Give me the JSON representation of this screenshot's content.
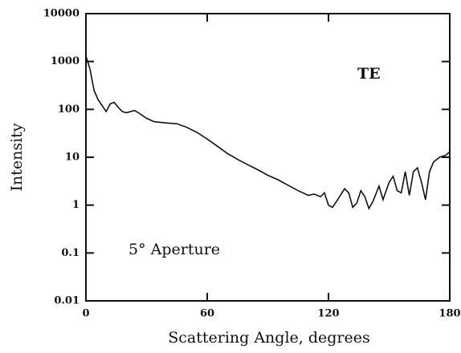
{
  "chart_data": {
    "type": "line",
    "xlabel": "Scattering Angle, degrees",
    "ylabel": "Intensity",
    "annotations": [
      "TE",
      "5° Aperture"
    ],
    "x": [
      0,
      2,
      4,
      6,
      8,
      10,
      12,
      14,
      16,
      18,
      20,
      24,
      26,
      30,
      34,
      40,
      45,
      50,
      55,
      60,
      65,
      70,
      75,
      80,
      85,
      90,
      95,
      100,
      105,
      110,
      113,
      116,
      118,
      120,
      122,
      124,
      128,
      130,
      132,
      134,
      136,
      138,
      140,
      142,
      145,
      147,
      150,
      152,
      154,
      156,
      158,
      160,
      162,
      164,
      166,
      168,
      170,
      172,
      175,
      178,
      180
    ],
    "values": [
      1300,
      700,
      250,
      160,
      120,
      90,
      130,
      140,
      110,
      90,
      85,
      95,
      85,
      65,
      55,
      52,
      50,
      42,
      33,
      24,
      17,
      12,
      9,
      7,
      5.5,
      4.2,
      3.4,
      2.6,
      2.0,
      1.6,
      1.7,
      1.5,
      1.8,
      1.0,
      0.9,
      1.2,
      2.2,
      1.8,
      0.9,
      1.1,
      2.0,
      1.5,
      0.85,
      1.2,
      2.5,
      1.3,
      3.0,
      4.0,
      2.0,
      1.8,
      5,
      1.6,
      5,
      6,
      3,
      1.3,
      5,
      8,
      10,
      11,
      13
    ],
    "color": "#111111",
    "xlim": [
      0,
      180
    ],
    "xticks": [
      0,
      60,
      120,
      180
    ],
    "ylim": [
      0.01,
      10000
    ],
    "yticks": [
      0.01,
      0.1,
      1,
      10,
      100,
      1000,
      10000
    ],
    "ylog": true
  }
}
